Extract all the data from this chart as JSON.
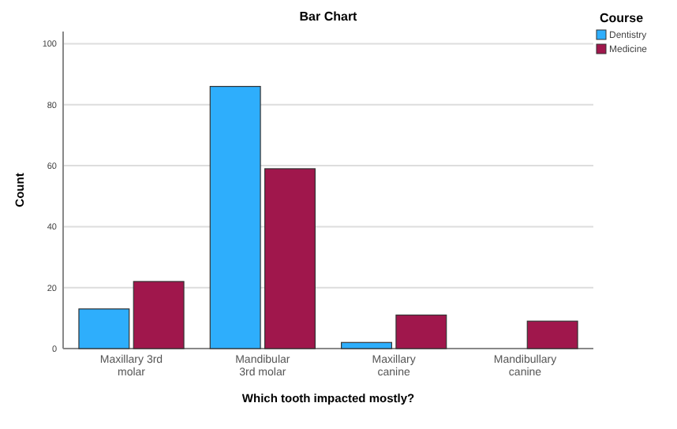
{
  "chart_data": {
    "type": "bar",
    "title": "Bar Chart",
    "xlabel": "Which tooth impacted mostly?",
    "ylabel": "Count",
    "legend_title": "Course",
    "legend": "top right",
    "grid": "y",
    "categories": [
      "Maxillary 3rd molar",
      "Mandibular 3rd molar",
      "Maxillary canine",
      "Mandibullary canine"
    ],
    "series": [
      {
        "name": "Dentistry",
        "color": "#2eaefc",
        "values": [
          13,
          86,
          2,
          0
        ]
      },
      {
        "name": "Medicine",
        "color": "#a0174c",
        "values": [
          22,
          59,
          11,
          9
        ]
      }
    ],
    "ylim": [
      0,
      104
    ],
    "yticks": [
      0,
      20,
      40,
      60,
      80,
      100
    ]
  }
}
